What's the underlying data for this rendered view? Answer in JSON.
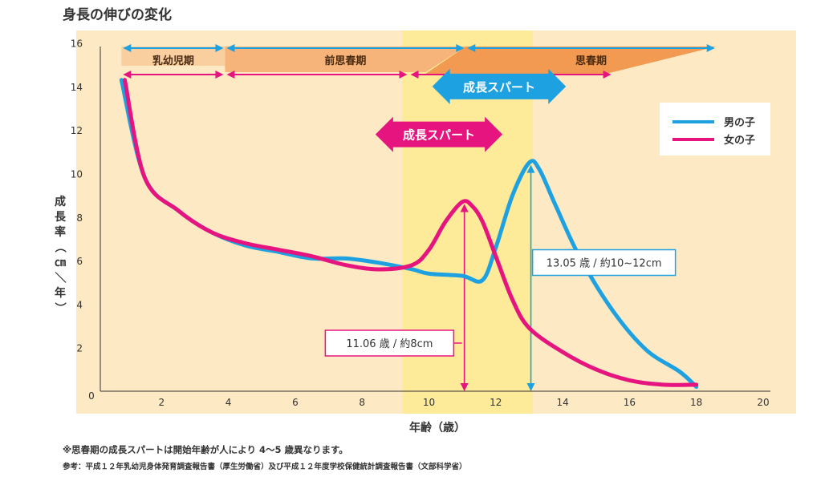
{
  "page_title": "身長の伸びの変化",
  "chart_data": {
    "type": "line",
    "xlabel": "年齢（歳）",
    "ylabel": "成長率（㎝／年）",
    "xlim": [
      0,
      20
    ],
    "ylim": [
      0,
      16
    ],
    "x_ticks": [
      "2",
      "4",
      "6",
      "8",
      "10",
      "12",
      "14",
      "16",
      "18",
      "20"
    ],
    "y_ticks": [
      "2",
      "4",
      "6",
      "8",
      "10",
      "12",
      "14",
      "16"
    ],
    "origin_label": "0",
    "grid": false,
    "legend_position": "top-right",
    "colors": {
      "boy": "#1ea1e0",
      "girl": "#e6147f",
      "background": "#fde9c4",
      "highlight": "#fdeb9a",
      "phase_light": "#f9cfa0",
      "phase_mid": "#f6b47a",
      "phase_dark": "#f29a52"
    },
    "series": [
      {
        "name": "男の子",
        "key": "boy",
        "x": [
          0.8,
          1.5,
          2.5,
          3.5,
          4.5,
          5.5,
          6.5,
          7.5,
          8.5,
          9.5,
          10,
          11,
          11.6,
          12,
          12.5,
          13,
          13.3,
          13.8,
          14.5,
          15.5,
          16.5,
          17.5,
          18
        ],
        "values": [
          14.3,
          9.8,
          8.3,
          7.3,
          6.7,
          6.4,
          6.1,
          6.1,
          5.9,
          5.6,
          5.4,
          5.3,
          5.1,
          6.6,
          9.0,
          10.5,
          10.2,
          8.5,
          6.2,
          3.7,
          1.9,
          0.9,
          0.2
        ]
      },
      {
        "name": "女の子",
        "key": "girl",
        "x": [
          0.9,
          1.5,
          2.5,
          3.5,
          4.5,
          5.5,
          6.5,
          7.5,
          8.5,
          9.5,
          10,
          10.5,
          11,
          11.3,
          11.6,
          12,
          12.5,
          13,
          14,
          15,
          16,
          17,
          18
        ],
        "values": [
          14.3,
          9.8,
          8.3,
          7.3,
          6.8,
          6.5,
          6.2,
          5.8,
          5.6,
          5.8,
          6.5,
          7.8,
          8.7,
          8.5,
          7.8,
          6.2,
          4.2,
          2.9,
          1.8,
          1.0,
          0.5,
          0.3,
          0.3
        ]
      }
    ],
    "phases_top": [
      {
        "label": "乳幼児期",
        "x_start": 0.8,
        "x_end": 3.9
      },
      {
        "label": "前思春期",
        "x_start": 3.9,
        "x_end": 11.1
      },
      {
        "label": "思春期",
        "x_start": 11.1,
        "x_end": 18.6
      }
    ],
    "phases_girl": {
      "x_points": [
        0.8,
        3.9,
        9.4,
        15.5
      ]
    },
    "spurts": [
      {
        "label": "成長スパート",
        "series": "boy",
        "x_start": 10.1,
        "x_end": 14.1,
        "y": 14.0
      },
      {
        "label": "成長スパート",
        "series": "girl",
        "x_start": 8.4,
        "x_end": 12.2,
        "y": 11.8
      }
    ],
    "peak_annotations": [
      {
        "series": "girl",
        "x": 11.06,
        "label": "11.06 歳 / 約8cm",
        "box_x": 6.9,
        "box_y": 2.8
      },
      {
        "series": "boy",
        "x": 13.05,
        "label": "13.05 歳 / 約10~12cm",
        "box_x": 13.1,
        "box_y": 6.5
      }
    ],
    "highlight_band": [
      9.2,
      13.1
    ]
  },
  "footnote": "※思春期の成長スパートは開始年齢が人により 4〜5 歳異なります。",
  "source": "参考：平成１２年乳幼児身体発育調査報告書（厚生労働省）及び平成１２年度学校保健統計調査報告書（文部科学省）"
}
